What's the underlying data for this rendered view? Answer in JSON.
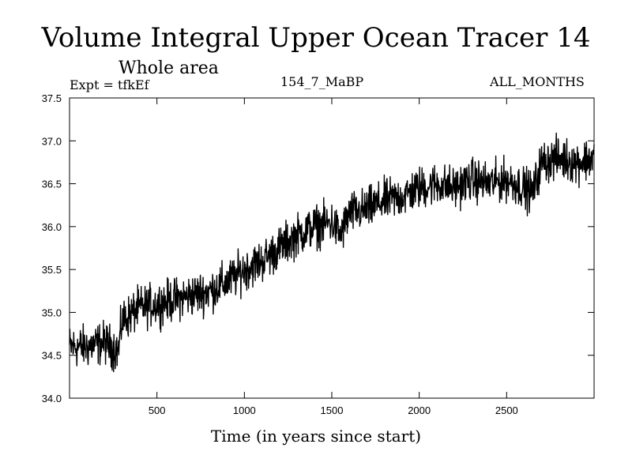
{
  "chart_data": {
    "type": "line",
    "title": "Volume Integral Upper Ocean Tracer 14",
    "subtitle": "Whole area",
    "annotations": {
      "left": "Expt = tfkEf",
      "center": "154_7_MaBP",
      "right": "ALL_MONTHS"
    },
    "xlabel": "Time (in years since start)",
    "ylabel": "",
    "xlim": [
      0,
      3000
    ],
    "ylim": [
      34.0,
      37.5
    ],
    "xticks": [
      500,
      1000,
      1500,
      2000,
      2500
    ],
    "yticks": [
      34.0,
      34.5,
      35.0,
      35.5,
      36.0,
      36.5,
      37.0,
      37.5
    ],
    "series": [
      {
        "name": "",
        "color": "#000000",
        "x": [
          0,
          100,
          200,
          280,
          300,
          400,
          500,
          600,
          700,
          800,
          900,
          1000,
          1100,
          1200,
          1300,
          1400,
          1500,
          1550,
          1600,
          1700,
          1800,
          1900,
          2000,
          2100,
          2200,
          2300,
          2400,
          2500,
          2600,
          2650,
          2700,
          2800,
          2900,
          3000
        ],
        "y": [
          34.6,
          34.6,
          34.65,
          34.55,
          34.9,
          35.05,
          35.1,
          35.15,
          35.2,
          35.25,
          35.35,
          35.5,
          35.6,
          35.75,
          35.9,
          36.0,
          36.05,
          35.9,
          36.15,
          36.2,
          36.3,
          36.35,
          36.45,
          36.5,
          36.45,
          36.55,
          36.5,
          36.55,
          36.45,
          36.4,
          36.75,
          36.8,
          36.75,
          36.8
        ],
        "noise_amplitude": 0.2
      }
    ]
  }
}
